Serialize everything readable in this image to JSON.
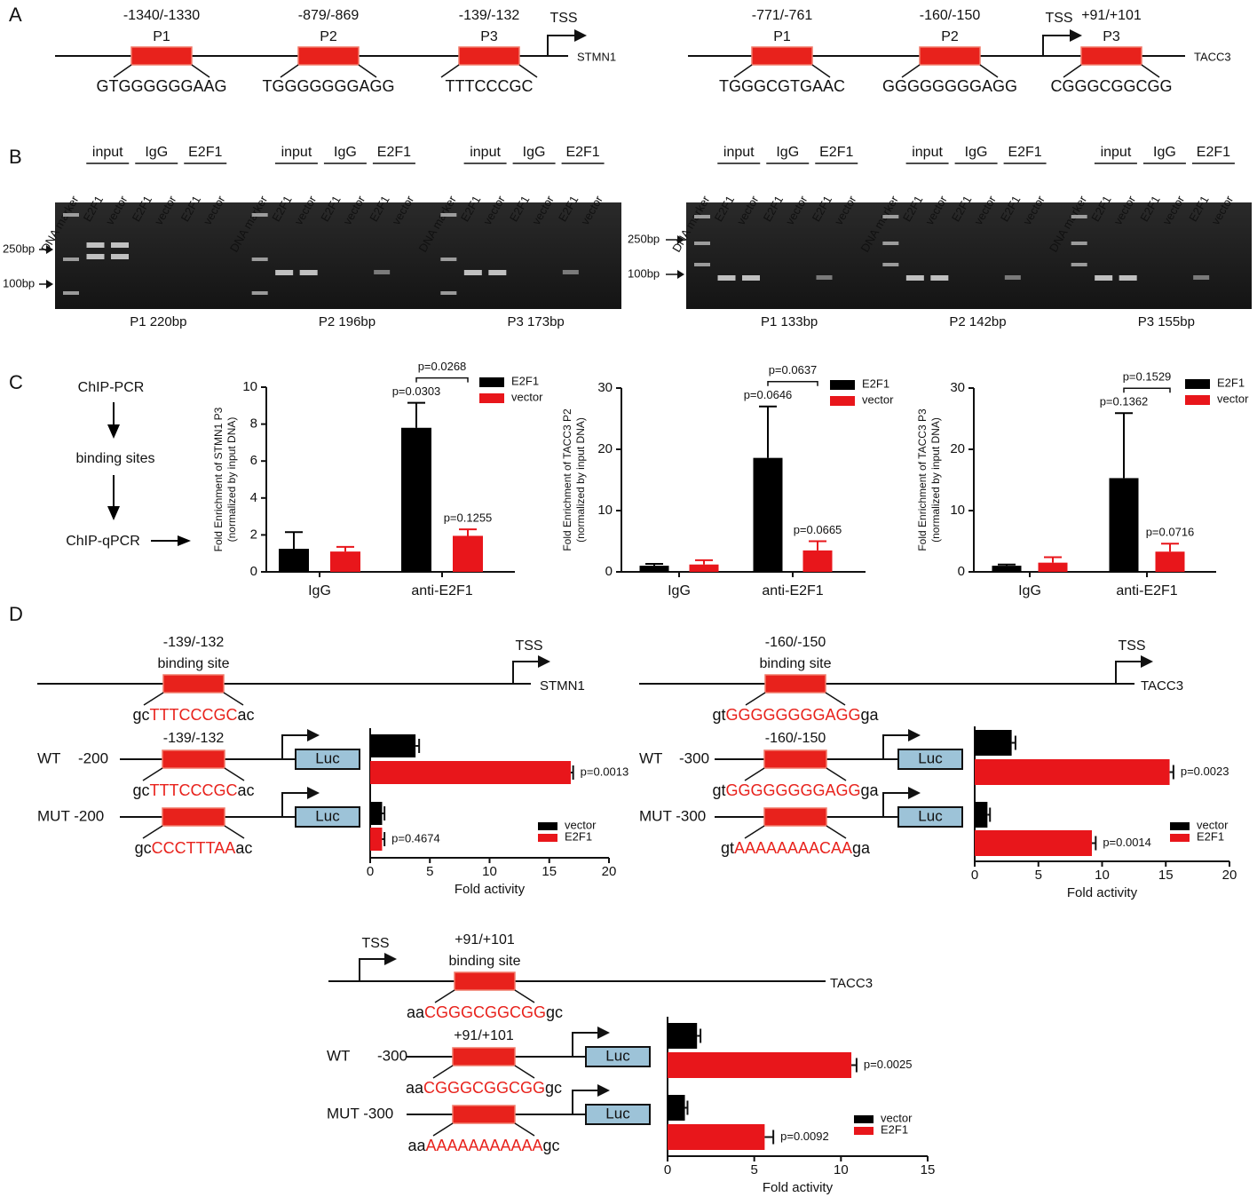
{
  "panel_labels": [
    "A",
    "B",
    "C",
    "D"
  ],
  "promoters": [
    {
      "gene": "STMN1",
      "tss": "TSS",
      "sites": [
        {
          "position": "-1340/-1330",
          "name": "P1",
          "sequence": "GTGGGGGGAAG"
        },
        {
          "position": "-879/-869",
          "name": "P2",
          "sequence": "TGGGGGGGAGG"
        },
        {
          "position": "-139/-132",
          "name": "P3",
          "sequence": "TTTCCCGC"
        }
      ]
    },
    {
      "gene": "TACC3",
      "tss": "TSS",
      "sites": [
        {
          "position": "-771/-761",
          "name": "P1",
          "sequence": "TGGGCGTGAAC"
        },
        {
          "position": "-160/-150",
          "name": "P2",
          "sequence": "GGGGGGGGAGG"
        },
        {
          "position": "+91/+101",
          "name": "P3",
          "sequence": "CGGGCGGCGG"
        }
      ]
    }
  ],
  "gels": [
    {
      "groups": [
        "input",
        "IgG",
        "E2F1"
      ],
      "lanes": [
        "DNA marker",
        "E2F1",
        "vector",
        "E2F1",
        "vector",
        "E2F1",
        "vector"
      ],
      "markers": [
        "250bp",
        "100bp"
      ],
      "captions": [
        "P1 220bp",
        "P2 196bp",
        "P3 173bp"
      ]
    },
    {
      "groups": [
        "input",
        "IgG",
        "E2F1"
      ],
      "lanes": [
        "DNA marker",
        "E2F1",
        "vector",
        "E2F1",
        "vector",
        "E2F1",
        "vector"
      ],
      "markers": [
        "250bp",
        "100bp"
      ],
      "captions": [
        "P1 133bp",
        "P2 142bp",
        "P3 155bp"
      ]
    }
  ],
  "flow": [
    "ChIP-PCR",
    "binding sites",
    "ChIP-qPCR"
  ],
  "chart_data": [
    {
      "type": "bar",
      "y_label": "Fold Enrichment of STMN1 P3",
      "y_label_note": "(normalized by input DNA)",
      "categories": [
        "IgG",
        "anti-E2F1"
      ],
      "ylim": [
        0,
        10
      ],
      "yticks": [
        0,
        2,
        4,
        6,
        8,
        10
      ],
      "series": [
        {
          "name": "E2F1",
          "color": "#000000",
          "values": [
            1.25,
            7.8
          ],
          "errors": [
            0.9,
            1.35
          ],
          "p_values": [
            null,
            "p=0.0303"
          ]
        },
        {
          "name": "vector",
          "color": "#e8161b",
          "values": [
            1.1,
            1.95
          ],
          "errors": [
            0.25,
            0.35
          ],
          "p_values": [
            null,
            "p=0.1255"
          ]
        }
      ],
      "comparison": "p=0.0268"
    },
    {
      "type": "bar",
      "y_label": "Fold Enrichment of TACC3 P2",
      "y_label_note": "(normalized by input DNA)",
      "categories": [
        "IgG",
        "anti-E2F1"
      ],
      "ylim": [
        0,
        30
      ],
      "yticks": [
        0,
        10,
        20,
        30
      ],
      "series": [
        {
          "name": "E2F1",
          "color": "#000000",
          "values": [
            1.0,
            18.6
          ],
          "errors": [
            0.3,
            8.4
          ],
          "p_values": [
            null,
            "p=0.0646"
          ]
        },
        {
          "name": "vector",
          "color": "#e8161b",
          "values": [
            1.2,
            3.5
          ],
          "errors": [
            0.7,
            1.5
          ],
          "p_values": [
            null,
            "p=0.0665"
          ]
        }
      ],
      "comparison": "p=0.0637"
    },
    {
      "type": "bar",
      "y_label": "Fold Enrichment of TACC3 P3",
      "y_label_note": "(normalized by input DNA)",
      "categories": [
        "IgG",
        "anti-E2F1"
      ],
      "ylim": [
        0,
        30
      ],
      "yticks": [
        0,
        10,
        20,
        30
      ],
      "series": [
        {
          "name": "E2F1",
          "color": "#000000",
          "values": [
            1.0,
            15.3
          ],
          "errors": [
            0.2,
            10.6
          ],
          "p_values": [
            null,
            "p=0.1362"
          ]
        },
        {
          "name": "vector",
          "color": "#e8161b",
          "values": [
            1.5,
            3.3
          ],
          "errors": [
            0.9,
            1.3
          ],
          "p_values": [
            null,
            "p=0.0716"
          ]
        }
      ],
      "comparison": "p=0.1529"
    },
    {
      "type": "barh",
      "x_label": "Fold activity",
      "xlim": [
        0,
        20
      ],
      "xticks": [
        0,
        5,
        10,
        15,
        20
      ],
      "series": [
        {
          "name": "vector",
          "color": "#000000",
          "values": [
            3.8,
            1.0
          ],
          "errors": [
            0.3,
            0.2
          ]
        },
        {
          "name": "E2F1",
          "color": "#e8161b",
          "values": [
            16.8,
            1.0
          ],
          "errors": [
            0.2,
            0.2
          ],
          "p_values": [
            "p=0.0013",
            "p=0.4674"
          ]
        }
      ]
    },
    {
      "type": "barh",
      "x_label": "Fold activity",
      "xlim": [
        0,
        20
      ],
      "xticks": [
        0,
        5,
        10,
        15,
        20
      ],
      "series": [
        {
          "name": "vector",
          "color": "#000000",
          "values": [
            2.9,
            1.0
          ],
          "errors": [
            0.3,
            0.2
          ]
        },
        {
          "name": "E2F1",
          "color": "#e8161b",
          "values": [
            15.3,
            9.2
          ],
          "errors": [
            0.3,
            0.3
          ],
          "p_values": [
            "p=0.0023",
            "p=0.0014"
          ]
        }
      ]
    },
    {
      "type": "barh",
      "x_label": "Fold activity",
      "xlim": [
        0,
        15
      ],
      "xticks": [
        0,
        5,
        10,
        15
      ],
      "series": [
        {
          "name": "vector",
          "color": "#000000",
          "values": [
            1.7,
            1.0
          ],
          "errors": [
            0.2,
            0.15
          ]
        },
        {
          "name": "E2F1",
          "color": "#e8161b",
          "values": [
            10.6,
            5.6
          ],
          "errors": [
            0.3,
            0.5
          ],
          "p_values": [
            "p=0.0025",
            "p=0.0092"
          ]
        }
      ]
    }
  ],
  "reporters": [
    {
      "top": {
        "position": "-139/-132",
        "site": "binding site",
        "tss": "TSS",
        "gene": "STMN1",
        "sequence": [
          "gc",
          "TTTCCCGC",
          "ac"
        ]
      },
      "wt": {
        "label": "WT",
        "length": "-200",
        "position": "-139/-132",
        "luc": "Luc",
        "sequence": [
          "gc",
          "TTTCCCGC",
          "ac"
        ]
      },
      "mut": {
        "label": "MUT -200",
        "luc": "Luc",
        "sequence": [
          "gc",
          "CCCTTTAA",
          "ac"
        ]
      }
    },
    {
      "top": {
        "position": "-160/-150",
        "site": "binding site",
        "tss": "TSS",
        "gene": "TACC3",
        "sequence": [
          "gt",
          "GGGGGGGGAGG",
          "ga"
        ]
      },
      "wt": {
        "label": "WT",
        "length": "-300",
        "position": "-160/-150",
        "luc": "Luc",
        "sequence": [
          "gt",
          "GGGGGGGGAGG",
          "ga"
        ]
      },
      "mut": {
        "label": "MUT -300",
        "luc": "Luc",
        "sequence": [
          "gt",
          "AAAAAAAACAA",
          "ga"
        ]
      }
    },
    {
      "top": {
        "position": "+91/+101",
        "site": "binding site",
        "tss": "TSS",
        "gene": "TACC3",
        "sequence": [
          "aa",
          "CGGGCGGCGG",
          "gc"
        ]
      },
      "wt": {
        "label": "WT",
        "length": "-300",
        "position": "+91/+101",
        "luc": "Luc",
        "sequence": [
          "aa",
          "CGGGCGGCGG",
          "gc"
        ]
      },
      "mut": {
        "label": "MUT -300",
        "luc": "Luc",
        "sequence": [
          "aa",
          "AAAAAAAAAAA",
          "gc"
        ]
      }
    }
  ]
}
